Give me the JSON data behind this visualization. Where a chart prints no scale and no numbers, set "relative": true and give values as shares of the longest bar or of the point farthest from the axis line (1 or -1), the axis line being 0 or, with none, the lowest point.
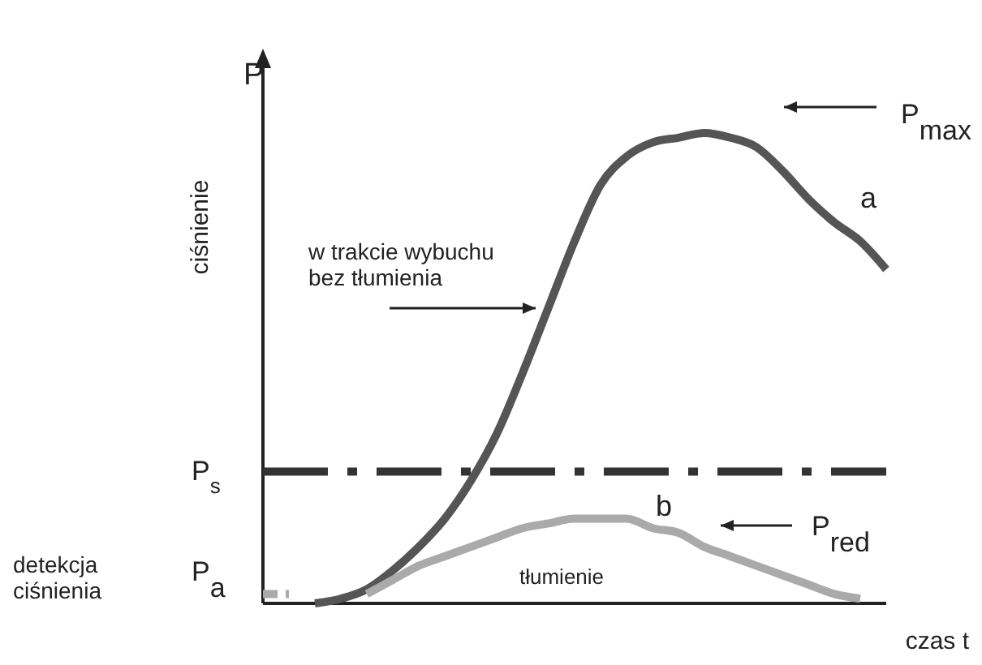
{
  "chart_data": {
    "type": "line",
    "relative": true,
    "xlabel": "czas t",
    "ylabel": "ciśnienie",
    "categories": [
      null,
      null,
      null,
      null,
      null,
      null,
      null,
      null,
      null,
      null,
      null,
      null,
      null,
      null,
      null,
      null,
      null,
      null,
      null,
      null,
      null,
      null,
      null,
      null,
      null
    ],
    "series": [
      {
        "name": "a",
        "color": "#555555",
        "values": [
          null,
          null,
          0,
          0.01,
          0.03,
          0.07,
          0.12,
          0.18,
          0.26,
          0.36,
          0.49,
          0.63,
          0.77,
          0.89,
          0.95,
          0.98,
          0.99,
          1,
          0.99,
          0.97,
          0.92,
          0.86,
          0.81,
          0.77,
          0.71
        ]
      },
      {
        "name": "b",
        "color": "#aaaaaa",
        "values": [
          null,
          null,
          null,
          null,
          0.02,
          0.05,
          0.08,
          0.1,
          0.12,
          0.14,
          0.16,
          0.17,
          0.18,
          0.18,
          0.18,
          0.16,
          0.15,
          0.12,
          0.1,
          0.08,
          0.06,
          0.04,
          0.02,
          0.01,
          null
        ]
      },
      {
        "color": "#aaaaaa",
        "line_style": "dashed",
        "values": [
          0.02,
          0.02,
          null,
          null,
          null,
          null,
          null,
          null,
          null,
          null,
          null,
          null,
          null,
          null,
          null,
          null,
          null,
          null,
          null,
          null,
          null,
          null,
          null,
          null,
          null
        ]
      }
    ],
    "ref_lines": [
      {
        "axis": "y",
        "value": 0.28,
        "label": "P$_{s}$",
        "color": "#333333"
      }
    ],
    "annotations": [
      "P",
      "P$_{max}$",
      "w trakcie wybuchu\nbez tłumienia",
      "tłumienie",
      "P$_{red}$",
      "P$_{a}$",
      "detekcja\nciśnienia"
    ]
  }
}
